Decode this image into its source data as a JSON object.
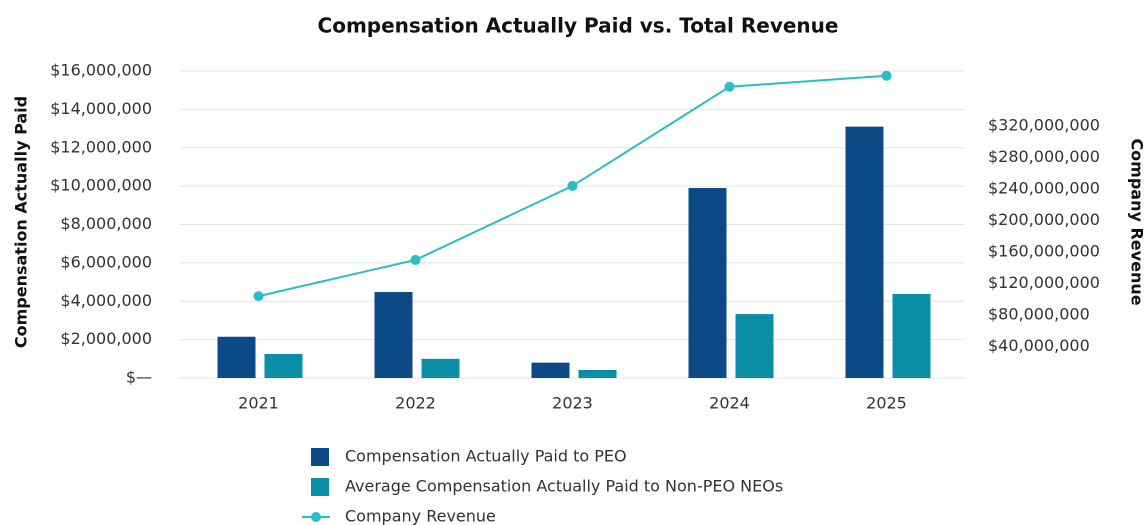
{
  "chart_data": {
    "type": "bar",
    "title": "Compensation Actually Paid vs. Total Revenue",
    "y_label": "Compensation Actually Paid",
    "y2_label": "Company Revenue",
    "categories": [
      "2021",
      "2022",
      "2023",
      "2024",
      "2025"
    ],
    "series": [
      {
        "name": "Compensation Actually Paid to PEO",
        "color": "#0b4a87",
        "type": "bar",
        "values": [
          2150000,
          4480000,
          800000,
          9900000,
          13100000
        ]
      },
      {
        "name": "Average Compensation Actually Paid to Non-PEO NEOs",
        "color": "#0a8fa6",
        "type": "bar",
        "values": [
          1250000,
          1000000,
          420000,
          3330000,
          4380000
        ]
      },
      {
        "name": "Company Revenue",
        "color": "#2bbcc4",
        "type": "line",
        "axis": "y2",
        "values": [
          104000000,
          150000000,
          244000000,
          370000000,
          384000000
        ]
      }
    ],
    "ylim": [
      0,
      16000000
    ],
    "yticks": [
      {
        "value": 0,
        "label": "$—"
      },
      {
        "value": 2000000,
        "label": "$2,000,000"
      },
      {
        "value": 4000000,
        "label": "$4,000,000"
      },
      {
        "value": 6000000,
        "label": "$6,000,000"
      },
      {
        "value": 8000000,
        "label": "$8,000,000"
      },
      {
        "value": 10000000,
        "label": "$10,000,000"
      },
      {
        "value": 12000000,
        "label": "$12,000,000"
      },
      {
        "value": 14000000,
        "label": "$14,000,000"
      },
      {
        "value": 16000000,
        "label": "$16,000,000"
      }
    ],
    "y2lim": [
      0,
      390000000
    ],
    "y2ticks": [
      {
        "value": 40000000,
        "label": "$40,000,000"
      },
      {
        "value": 80000000,
        "label": "$80,000,000"
      },
      {
        "value": 120000000,
        "label": "$120,000,000"
      },
      {
        "value": 160000000,
        "label": "$160,000,000"
      },
      {
        "value": 200000000,
        "label": "$200,000,000"
      },
      {
        "value": 240000000,
        "label": "$240,000,000"
      },
      {
        "value": 280000000,
        "label": "$280,000,000"
      },
      {
        "value": 320000000,
        "label": "$320,000,000"
      }
    ],
    "grid": true
  }
}
